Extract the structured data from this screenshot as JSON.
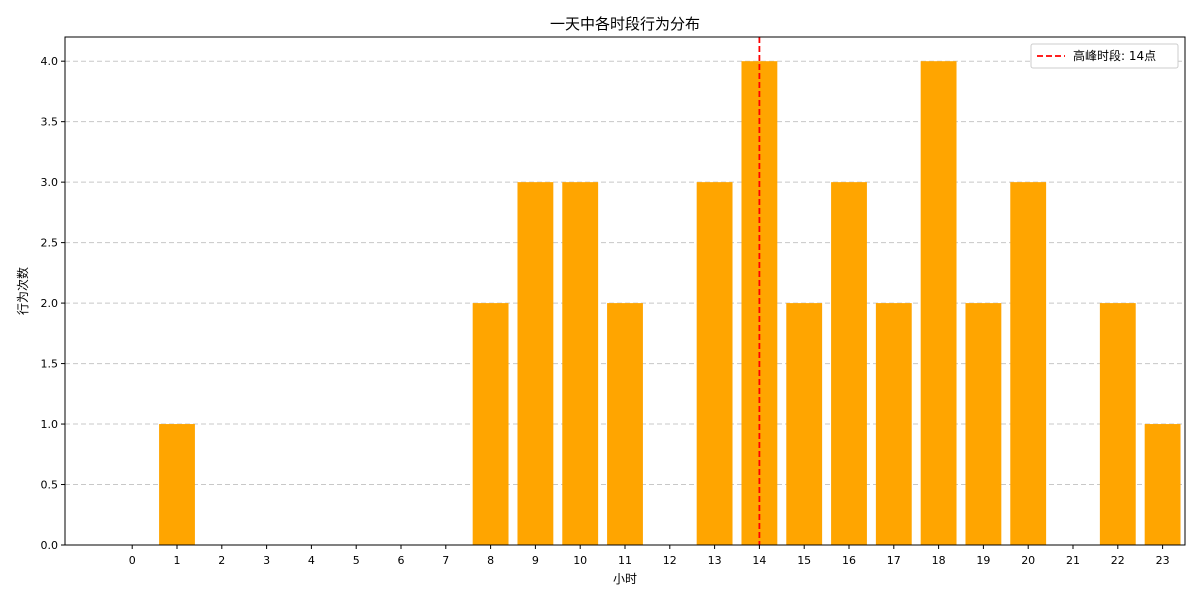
{
  "chart_data": {
    "type": "bar",
    "title": "一天中各时段行为分布",
    "xlabel": "小时",
    "ylabel": "行为次数",
    "categories": [
      "0",
      "1",
      "2",
      "3",
      "4",
      "5",
      "6",
      "7",
      "8",
      "9",
      "10",
      "11",
      "12",
      "13",
      "14",
      "15",
      "16",
      "17",
      "18",
      "19",
      "20",
      "21",
      "22",
      "23"
    ],
    "values": [
      0,
      1,
      0,
      0,
      0,
      0,
      0,
      0,
      2,
      3,
      3,
      2,
      0,
      3,
      4,
      2,
      3,
      2,
      4,
      2,
      3,
      0,
      2,
      1
    ],
    "ylim": [
      0,
      4.2
    ],
    "yticks": [
      "0.0",
      "0.5",
      "1.0",
      "1.5",
      "2.0",
      "2.5",
      "3.0",
      "3.5",
      "4.0"
    ],
    "grid": "horizontal dashed",
    "bar_color": "#FFA500",
    "reference_line": {
      "x": 14,
      "color": "#FF0000",
      "style": "dashed",
      "label": "高峰时段: 14点"
    },
    "legend_position": "top-right"
  }
}
